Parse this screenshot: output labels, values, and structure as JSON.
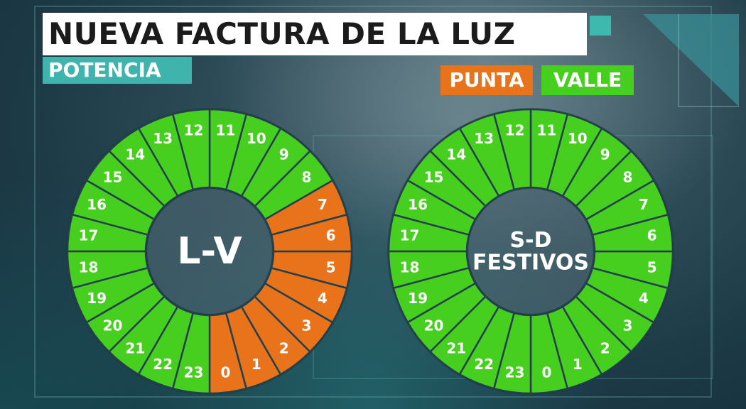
{
  "title": "NUEVA FACTURA DE LA LUZ",
  "subtitle": "POTENCIA",
  "legend": {
    "punta": {
      "label": "PUNTA",
      "color": "#e8731a"
    },
    "valle": {
      "label": "VALLE",
      "color": "#47cf1f"
    }
  },
  "dials": [
    {
      "center_lines": [
        "L-V"
      ],
      "hours": [
        "0",
        "1",
        "2",
        "3",
        "4",
        "5",
        "6",
        "7",
        "8",
        "9",
        "10",
        "11",
        "12",
        "13",
        "14",
        "15",
        "16",
        "17",
        "18",
        "19",
        "20",
        "21",
        "22",
        "23"
      ],
      "periods": [
        "punta",
        "punta",
        "punta",
        "punta",
        "punta",
        "punta",
        "punta",
        "punta",
        "valle",
        "valle",
        "valle",
        "valle",
        "valle",
        "valle",
        "valle",
        "valle",
        "valle",
        "valle",
        "valle",
        "valle",
        "valle",
        "valle",
        "valle",
        "valle"
      ]
    },
    {
      "center_lines": [
        "S-D",
        "FESTIVOS"
      ],
      "hours": [
        "0",
        "1",
        "2",
        "3",
        "4",
        "5",
        "6",
        "7",
        "8",
        "9",
        "10",
        "11",
        "12",
        "13",
        "14",
        "15",
        "16",
        "17",
        "18",
        "19",
        "20",
        "21",
        "22",
        "23"
      ],
      "periods": [
        "valle",
        "valle",
        "valle",
        "valle",
        "valle",
        "valle",
        "valle",
        "valle",
        "valle",
        "valle",
        "valle",
        "valle",
        "valle",
        "valle",
        "valle",
        "valle",
        "valle",
        "valle",
        "valle",
        "valle",
        "valle",
        "valle",
        "valle",
        "valle"
      ]
    }
  ]
}
